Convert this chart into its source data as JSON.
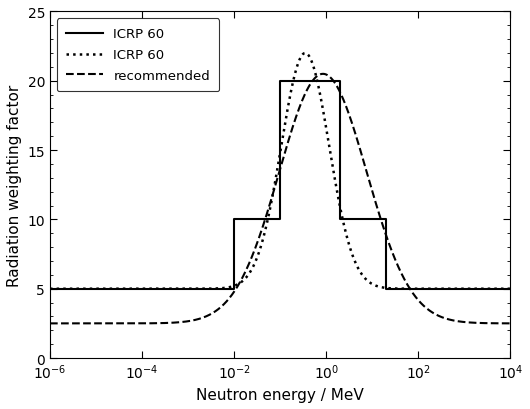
{
  "title": "",
  "xlabel": "Neutron energy / MeV",
  "ylabel": "Radiation weighting factor",
  "xlim_log": [
    -6,
    4
  ],
  "ylim": [
    0,
    25
  ],
  "yticks": [
    0,
    5,
    10,
    15,
    20,
    25
  ],
  "background_color": "#ffffff",
  "dotted_peak_E": 0.35,
  "dotted_baseline": 5.0,
  "dotted_peak_val": 22.0,
  "dotted_sigma": 0.52,
  "dashed_peak_E": 0.85,
  "dashed_baseline": 2.5,
  "dashed_peak_val": 20.5,
  "dashed_sigma": 0.95,
  "step_segments_x": [
    1e-06,
    0.01,
    0.01,
    0.1,
    0.1,
    2.0,
    2.0,
    20.0,
    20.0,
    10000.0
  ],
  "step_segments_y": [
    5,
    5,
    10,
    10,
    20,
    20,
    10,
    10,
    5,
    5
  ]
}
